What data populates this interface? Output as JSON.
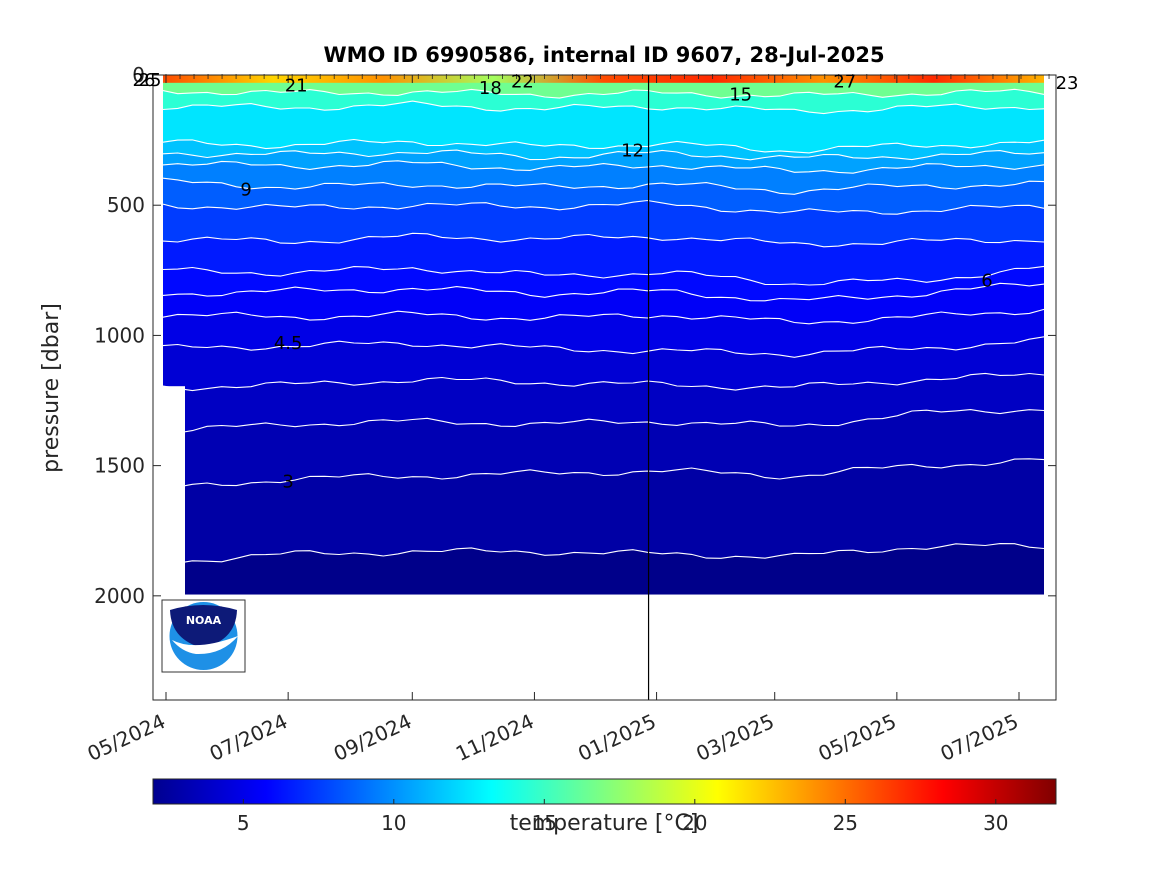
{
  "chart_data": {
    "type": "heatmap",
    "title": "WMO ID 6990586, internal ID 9607, 28-Jul-2025",
    "ylabel": "pressure [dbar]",
    "xlabel": "",
    "ylim": [
      2400,
      0
    ],
    "y_ticks": [
      0,
      500,
      1000,
      1500,
      2000
    ],
    "x_tick_labels": [
      "05/2024",
      "07/2024",
      "09/2024",
      "11/2024",
      "01/2025",
      "03/2025",
      "05/2025",
      "07/2025"
    ],
    "vertical_marker": "2024-12-28",
    "colorbar": {
      "label": "temperature [°C]",
      "range": [
        2,
        32
      ],
      "ticks": [
        5,
        10,
        15,
        20,
        25,
        30
      ],
      "colormap": "jet"
    },
    "contour_labels": [
      {
        "text": "26",
        "x": "2024-04-20",
        "y": 20
      },
      {
        "text": "25",
        "x": "2024-04-23",
        "y": 20
      },
      {
        "text": "21",
        "x": "2024-07-05",
        "y": 40
      },
      {
        "text": "18",
        "x": "2024-10-10",
        "y": 50
      },
      {
        "text": "22",
        "x": "2024-10-26",
        "y": 25
      },
      {
        "text": "12",
        "x": "2024-12-20",
        "y": 290
      },
      {
        "text": "15",
        "x": "2025-02-12",
        "y": 75
      },
      {
        "text": "27",
        "x": "2025-04-05",
        "y": 25
      },
      {
        "text": "23",
        "x": "2025-07-25",
        "y": 30
      },
      {
        "text": "9",
        "x": "2024-06-10",
        "y": 440
      },
      {
        "text": "6",
        "x": "2025-06-15",
        "y": 790
      },
      {
        "text": "4.5",
        "x": "2024-07-01",
        "y": 1030
      },
      {
        "text": "3",
        "x": "2024-07-01",
        "y": 1560
      }
    ],
    "isotherms": [
      {
        "t": 16,
        "depth": [
          60,
          70,
          65,
          75,
          70,
          80,
          70,
          65
        ]
      },
      {
        "t": 14,
        "depth": [
          120,
          125,
          115,
          130,
          120,
          140,
          125,
          120
        ]
      },
      {
        "t": 12,
        "depth": [
          260,
          270,
          255,
          275,
          265,
          290,
          270,
          260
        ]
      },
      {
        "t": 11,
        "depth": [
          300,
          305,
          295,
          315,
          300,
          320,
          310,
          300
        ]
      },
      {
        "t": 10,
        "depth": [
          340,
          350,
          340,
          360,
          345,
          370,
          355,
          345
        ]
      },
      {
        "t": 9,
        "depth": [
          410,
          430,
          420,
          430,
          420,
          445,
          425,
          420
        ]
      },
      {
        "t": 8,
        "depth": [
          500,
          510,
          500,
          505,
          495,
          530,
          520,
          505
        ]
      },
      {
        "t": 7,
        "depth": [
          630,
          640,
          620,
          630,
          620,
          650,
          640,
          630
        ]
      },
      {
        "t": 6,
        "depth": [
          750,
          760,
          740,
          770,
          760,
          800,
          790,
          740
        ]
      },
      {
        "t": 5.5,
        "depth": [
          840,
          830,
          820,
          840,
          830,
          870,
          840,
          800
        ]
      },
      {
        "t": 5,
        "depth": [
          920,
          930,
          920,
          935,
          920,
          950,
          930,
          900
        ]
      },
      {
        "t": 4.5,
        "depth": [
          1050,
          1040,
          1030,
          1050,
          1060,
          1070,
          1050,
          1020
        ]
      },
      {
        "t": 4,
        "depth": [
          1200,
          1190,
          1170,
          1180,
          1190,
          1200,
          1170,
          1150
        ]
      },
      {
        "t": 3.5,
        "depth": [
          1370,
          1340,
          1330,
          1340,
          1330,
          1350,
          1300,
          1280
        ]
      },
      {
        "t": 3,
        "depth": [
          1590,
          1550,
          1540,
          1530,
          1520,
          1540,
          1500,
          1480
        ]
      },
      {
        "t": 2.6,
        "depth": [
          1870,
          1840,
          1830,
          1830,
          1840,
          1850,
          1810,
          1810
        ]
      }
    ],
    "surface_temps": [
      26,
      22,
      24,
      18,
      26,
      27,
      24,
      27,
      23
    ]
  }
}
